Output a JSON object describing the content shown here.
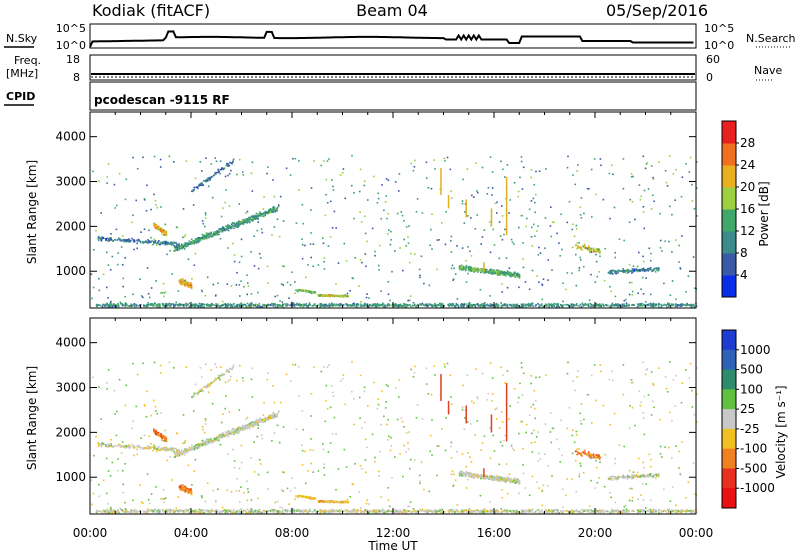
{
  "header": {
    "station": "Kodiak (fitACF)",
    "beam": "Beam 04",
    "date": "05/Sep/2016"
  },
  "side_labels": {
    "nsky": "N.Sky",
    "freq": "Freq.",
    "mhz": "[MHz]",
    "cpid": "CPID",
    "nsearch": "N.Search",
    "nave": "Nave",
    "noise_ticks_left": [
      "10^5",
      "10^0"
    ],
    "noise_ticks_right": [
      "10^5",
      "10^0"
    ],
    "freq_ticks": [
      "18",
      "8"
    ],
    "nave_ticks": [
      "60",
      "0"
    ],
    "cpid_text": "pcodescan -9115 RF"
  },
  "chart_data": [
    {
      "type": "heatmap",
      "name": "power",
      "ylabel": "Slant Range [km]",
      "xlabel": "",
      "xlim_hours": [
        0,
        24
      ],
      "ylim_km": [
        180,
        4550
      ],
      "yticks": [
        "1000",
        "2000",
        "3000",
        "4000"
      ],
      "colorbar": {
        "label": "Power [dB]",
        "range": [
          0,
          32
        ],
        "ticks": [
          "4",
          "8",
          "12",
          "16",
          "20",
          "24",
          "28"
        ],
        "colors": [
          "#0a2ee8",
          "#3a5aa8",
          "#3d8a8a",
          "#3fa86a",
          "#9bd040",
          "#e8b020",
          "#f07020",
          "#e82020"
        ]
      }
    },
    {
      "type": "heatmap",
      "name": "velocity",
      "ylabel": "Slant Range [km]",
      "xlabel": "Time UT",
      "xlim_hours": [
        0,
        24
      ],
      "ylim_km": [
        180,
        4550
      ],
      "yticks": [
        "1000",
        "2000",
        "3000",
        "4000"
      ],
      "xticks": [
        "00:00",
        "04:00",
        "08:00",
        "12:00",
        "16:00",
        "20:00",
        "00:00"
      ],
      "colorbar": {
        "label": "Velocity [m s⁻¹]",
        "ticks": [
          "1000",
          "500",
          "100",
          "25",
          "-25",
          "-100",
          "-500",
          "-1000"
        ],
        "colors": [
          "#1e3cd0",
          "#2e62b8",
          "#2e8c6e",
          "#60c040",
          "#c8c8c8",
          "#f0c020",
          "#f08020",
          "#e83020",
          "#e81010"
        ]
      }
    }
  ]
}
